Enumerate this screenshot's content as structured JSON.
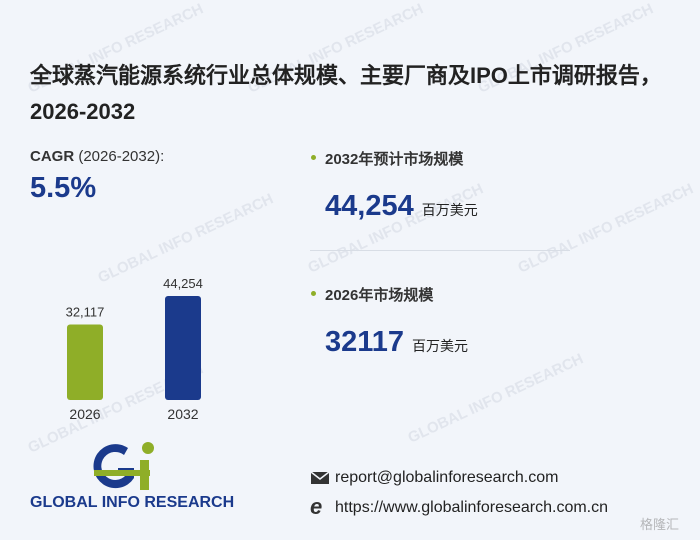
{
  "title": "全球蒸汽能源系统行业总体规模、主要厂商及IPO上市调研报告，2026-2032",
  "cagr": {
    "label": "CAGR",
    "period": "(2026-2032):",
    "value": "5.5%"
  },
  "stats": [
    {
      "label": "2032年预计市场规模",
      "value": "44,254",
      "unit": "百万美元"
    },
    {
      "label": "2026年市场规模",
      "value": "32117",
      "unit": "百万美元"
    }
  ],
  "chart_data": {
    "type": "bar",
    "categories": [
      "2026",
      "2032"
    ],
    "values": [
      32117,
      44254
    ],
    "value_labels": [
      "32,117",
      "44,254"
    ],
    "colors": [
      "#8fae28",
      "#1b3a8c"
    ]
  },
  "logo": "GLOBAL INFO RESEARCH",
  "contact": {
    "email": "report@globalinforesearch.com",
    "website": "https://www.globalinforesearch.com.cn"
  },
  "corner_watermark": "格隆汇"
}
